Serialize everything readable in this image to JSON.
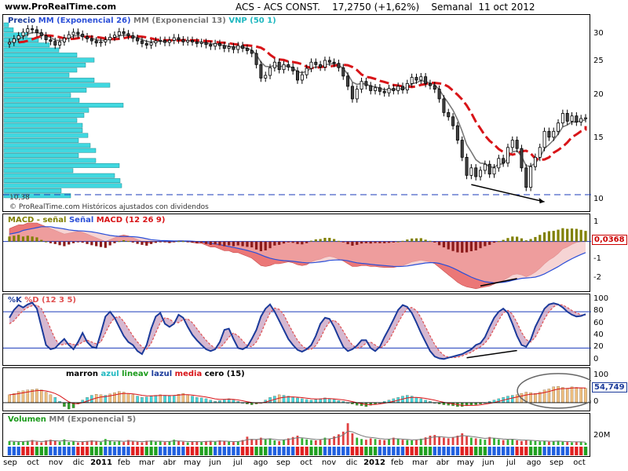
{
  "header": {
    "site": "www.ProRealTime.com",
    "ticker": "ACS - ACS CONST.",
    "price": "17,2750 (+1,62%)",
    "period": "Semanal",
    "date": "11 oct 2012"
  },
  "chart_data": [
    {
      "type": "candlestick",
      "pane": "price",
      "legend": [
        "Precio",
        "MM (Exponencial 26)",
        "MM (Exponencial 13)",
        "VNP (50 1)"
      ],
      "ylim": [
        9.5,
        33.5
      ],
      "y_scale": "log",
      "yticks": [
        30,
        25,
        20,
        15,
        10
      ],
      "low_label": "10,38",
      "watermark": "© ProRealTime.com  Históricos ajustados con dividendos",
      "x_labels": [
        "sep",
        "oct",
        "nov",
        "dic",
        "2011",
        "feb",
        "mar",
        "abr",
        "may",
        "jun",
        "jul",
        "ago",
        "sep",
        "oct",
        "nov",
        "dic",
        "2012",
        "feb",
        "mar",
        "abr",
        "may",
        "jun",
        "jul",
        "ago",
        "sep",
        "oct"
      ],
      "closes": [
        28.5,
        29.2,
        29.8,
        30.5,
        31.2,
        31.0,
        30.4,
        29.8,
        29.0,
        28.7,
        28.0,
        28.6,
        29.3,
        30.0,
        30.5,
        30.1,
        29.6,
        29.2,
        28.8,
        28.4,
        28.6,
        29.0,
        29.5,
        29.9,
        30.6,
        30.2,
        29.8,
        29.3,
        28.8,
        28.3,
        28.0,
        28.4,
        28.8,
        28.9,
        28.5,
        28.9,
        29.4,
        29.0,
        28.6,
        28.9,
        28.6,
        28.3,
        28.5,
        28.1,
        27.8,
        28.3,
        27.9,
        27.4,
        27.7,
        27.2,
        27.9,
        27.4,
        27.0,
        26.5,
        24.6,
        22.5,
        22.9,
        24.1,
        25.0,
        23.8,
        24.6,
        24.2,
        23.6,
        22.2,
        23.0,
        24.0,
        25.0,
        24.6,
        24.2,
        25.3,
        25.0,
        24.8,
        24.1,
        22.8,
        21.3,
        19.6,
        20.9,
        22.0,
        21.4,
        20.7,
        21.1,
        20.6,
        20.4,
        21.0,
        20.7,
        21.3,
        20.8,
        21.7,
        22.6,
        22.2,
        22.7,
        21.7,
        21.4,
        20.9,
        19.6,
        17.9,
        17.4,
        16.4,
        14.9,
        13.3,
        11.8,
        12.4,
        11.7,
        12.2,
        12.7,
        11.9,
        12.4,
        13.2,
        12.8,
        14.2,
        14.9,
        14.1,
        12.4,
        10.9,
        12.5,
        13.3,
        14.2,
        15.8,
        15.2,
        15.8,
        16.7,
        17.8,
        16.9,
        17.5,
        16.8,
        17.2,
        17.275
      ],
      "volume_profile": [
        6,
        12,
        30,
        44,
        58,
        70,
        93,
        115,
        104,
        93,
        83,
        115,
        135,
        105,
        85,
        96,
        152,
        108,
        102,
        93,
        100,
        100,
        107,
        95,
        110,
        117,
        95,
        117,
        147,
        88,
        141,
        148,
        150,
        73,
        85
      ]
    },
    {
      "type": "area",
      "pane": "macd",
      "legend": [
        "MACD - señal",
        "Señal",
        "MACD (12 26 9)"
      ],
      "ylim": [
        -2.6,
        1.3
      ],
      "yticks": [
        1,
        -1,
        -2
      ],
      "last_value": "0,0368",
      "macd": [
        0.7,
        0.8,
        0.9,
        0.9,
        1.0,
        1.0,
        1.0,
        0.9,
        0.8,
        0.7,
        0.6,
        0.5,
        0.4,
        0.45,
        0.5,
        0.55,
        0.5,
        0.4,
        0.3,
        0.2,
        0.1,
        0.0,
        0.1,
        0.2,
        0.3,
        0.35,
        0.3,
        0.2,
        0.1,
        0.0,
        -0.1,
        -0.05,
        0.0,
        0.05,
        0.0,
        -0.05,
        0.0,
        0.05,
        0.05,
        0.0,
        -0.05,
        -0.1,
        -0.1,
        -0.2,
        -0.3,
        -0.3,
        -0.4,
        -0.5,
        -0.5,
        -0.6,
        -0.6,
        -0.7,
        -0.8,
        -0.9,
        -1.1,
        -1.3,
        -1.35,
        -1.3,
        -1.2,
        -1.2,
        -1.15,
        -1.1,
        -1.15,
        -1.25,
        -1.3,
        -1.25,
        -1.1,
        -1.0,
        -0.95,
        -0.85,
        -0.8,
        -0.85,
        -0.95,
        -1.05,
        -1.2,
        -1.35,
        -1.35,
        -1.3,
        -1.3,
        -1.35,
        -1.35,
        -1.38,
        -1.4,
        -1.4,
        -1.4,
        -1.35,
        -1.3,
        -1.2,
        -1.1,
        -1.05,
        -1.0,
        -1.05,
        -1.1,
        -1.2,
        -1.4,
        -1.6,
        -1.8,
        -2.0,
        -2.2,
        -2.35,
        -2.45,
        -2.5,
        -2.55,
        -2.5,
        -2.45,
        -2.4,
        -2.3,
        -2.2,
        -2.1,
        -1.95,
        -1.8,
        -1.75,
        -1.8,
        -1.9,
        -1.8,
        -1.65,
        -1.45,
        -1.2,
        -1.0,
        -0.85,
        -0.65,
        -0.4,
        -0.3,
        -0.15,
        -0.05,
        0.0,
        0.0368
      ],
      "signal": [
        0.4,
        0.45,
        0.5,
        0.6,
        0.65,
        0.7,
        0.75,
        0.8,
        0.8,
        0.8,
        0.75,
        0.72,
        0.68,
        0.63,
        0.6,
        0.58,
        0.57,
        0.55,
        0.52,
        0.48,
        0.43,
        0.38,
        0.33,
        0.3,
        0.28,
        0.27,
        0.27,
        0.26,
        0.24,
        0.2,
        0.15,
        0.1,
        0.08,
        0.06,
        0.05,
        0.04,
        0.03,
        0.03,
        0.03,
        0.03,
        0.02,
        0.0,
        -0.02,
        -0.05,
        -0.1,
        -0.13,
        -0.17,
        -0.22,
        -0.27,
        -0.32,
        -0.37,
        -0.42,
        -0.48,
        -0.55,
        -0.62,
        -0.72,
        -0.82,
        -0.9,
        -0.96,
        -1.0,
        -1.03,
        -1.05,
        -1.07,
        -1.1,
        -1.13,
        -1.15,
        -1.15,
        -1.13,
        -1.1,
        -1.07,
        -1.02,
        -1.0,
        -0.99,
        -1.0,
        -1.04,
        -1.1,
        -1.15,
        -1.18,
        -1.2,
        -1.23,
        -1.26,
        -1.28,
        -1.3,
        -1.32,
        -1.34,
        -1.35,
        -1.34,
        -1.32,
        -1.28,
        -1.24,
        -1.2,
        -1.16,
        -1.14,
        -1.14,
        -1.18,
        -1.25,
        -1.33,
        -1.43,
        -1.55,
        -1.68,
        -1.8,
        -1.92,
        -2.02,
        -2.1,
        -2.17,
        -2.2,
        -2.23,
        -2.22,
        -2.2,
        -2.16,
        -2.1,
        -2.04,
        -1.99,
        -1.97,
        -1.95,
        -1.92,
        -1.85,
        -1.75,
        -1.62,
        -1.49,
        -1.36,
        -1.2,
        -1.06,
        -0.93,
        -0.81,
        -0.7,
        -0.6
      ]
    },
    {
      "type": "line",
      "pane": "stochastic",
      "legend": [
        "%K",
        "%D (12 3 5)"
      ],
      "ylim": [
        -8,
        106
      ],
      "yticks": [
        100,
        80,
        60,
        40,
        20,
        0
      ],
      "k": [
        70,
        83,
        91,
        87,
        92,
        95,
        85,
        55,
        25,
        18,
        20,
        28,
        35,
        25,
        18,
        30,
        45,
        30,
        22,
        20,
        45,
        72,
        80,
        70,
        55,
        40,
        30,
        25,
        15,
        10,
        25,
        52,
        72,
        78,
        60,
        55,
        60,
        75,
        70,
        55,
        42,
        33,
        25,
        18,
        15,
        18,
        30,
        50,
        52,
        35,
        20,
        18,
        22,
        35,
        50,
        72,
        85,
        92,
        80,
        65,
        50,
        35,
        25,
        17,
        14,
        18,
        25,
        40,
        60,
        70,
        68,
        55,
        38,
        22,
        15,
        18,
        24,
        33,
        33,
        20,
        15,
        22,
        38,
        52,
        67,
        83,
        91,
        88,
        78,
        62,
        45,
        30,
        15,
        6,
        3,
        2,
        4,
        6,
        8,
        10,
        14,
        18,
        25,
        28,
        38,
        55,
        70,
        80,
        85,
        78,
        60,
        40,
        25,
        22,
        34,
        55,
        70,
        85,
        92,
        94,
        92,
        87,
        80,
        75,
        72,
        73,
        76
      ],
      "d": [
        60,
        65,
        74,
        82,
        87,
        90,
        91,
        85,
        70,
        52,
        35,
        25,
        26,
        28,
        26,
        25,
        30,
        33,
        30,
        27,
        30,
        45,
        60,
        70,
        72,
        64,
        52,
        40,
        30,
        22,
        18,
        28,
        45,
        62,
        70,
        68,
        62,
        62,
        67,
        68,
        62,
        52,
        42,
        33,
        25,
        20,
        20,
        28,
        38,
        45,
        40,
        32,
        24,
        22,
        30,
        44,
        62,
        78,
        86,
        84,
        75,
        60,
        46,
        33,
        24,
        18,
        18,
        24,
        36,
        52,
        63,
        66,
        60,
        48,
        35,
        25,
        20,
        22,
        28,
        30,
        25,
        20,
        24,
        33,
        47,
        62,
        75,
        85,
        87,
        82,
        70,
        55,
        40,
        26,
        15,
        8,
        5,
        4,
        5,
        7,
        10,
        13,
        18,
        22,
        28,
        38,
        52,
        66,
        78,
        82,
        76,
        62,
        46,
        34,
        30,
        38,
        52,
        68,
        80,
        88,
        92,
        91,
        87,
        82,
        78,
        75,
        74
      ]
    },
    {
      "type": "bar",
      "pane": "oscillator",
      "legend": [
        "marron",
        "azul",
        "lineav",
        "lazul",
        "media",
        "cero (15)"
      ],
      "ylim": [
        -30,
        125
      ],
      "yticks": [
        100,
        0
      ],
      "last_value": "54,749",
      "values": [
        30,
        35,
        42,
        45,
        48,
        50,
        52,
        48,
        40,
        30,
        20,
        5,
        -15,
        -25,
        -20,
        -5,
        10,
        20,
        28,
        32,
        30,
        28,
        33,
        38,
        42,
        40,
        35,
        30,
        25,
        20,
        22,
        25,
        28,
        30,
        28,
        25,
        28,
        32,
        35,
        30,
        25,
        20,
        18,
        15,
        10,
        5,
        8,
        12,
        15,
        10,
        5,
        0,
        -5,
        -8,
        -5,
        0,
        10,
        20,
        25,
        30,
        28,
        25,
        22,
        18,
        15,
        12,
        10,
        12,
        15,
        18,
        15,
        12,
        8,
        5,
        0,
        -5,
        -10,
        -12,
        -15,
        -10,
        -5,
        0,
        5,
        10,
        15,
        20,
        25,
        28,
        25,
        20,
        15,
        10,
        5,
        0,
        -5,
        -8,
        -10,
        -12,
        -15,
        -15,
        -12,
        -10,
        -8,
        -5,
        0,
        5,
        10,
        15,
        20,
        25,
        28,
        30,
        35,
        40,
        38,
        35,
        40,
        48,
        52,
        60,
        62,
        58,
        55,
        60,
        58,
        56,
        54.749
      ]
    },
    {
      "type": "bar",
      "pane": "volume",
      "legend": [
        "Volumen",
        "MM (Exponencial 5)"
      ],
      "yticks": [
        "20M"
      ],
      "volume": [
        1.2,
        1.0,
        0.9,
        1.1,
        1.3,
        1.5,
        1.0,
        0.8,
        1.4,
        1.6,
        1.2,
        1.0,
        1.7,
        0.9,
        1.1,
        0.8,
        1.0,
        1.2,
        1.4,
        1.1,
        0.9,
        1.8,
        1.3,
        1.0,
        1.2,
        0.9,
        1.5,
        1.1,
        1.0,
        0.8,
        1.3,
        1.4,
        1.0,
        1.2,
        0.9,
        1.1,
        1.6,
        1.2,
        1.0,
        0.8,
        1.1,
        1.0,
        0.9,
        1.2,
        1.3,
        1.0,
        1.4,
        1.2,
        1.0,
        0.9,
        1.1,
        1.5,
        2.5,
        1.8,
        1.6,
        2.2,
        1.7,
        2.0,
        1.4,
        1.2,
        1.6,
        2.0,
        2.4,
        2.8,
        2.0,
        1.7,
        1.5,
        1.4,
        1.6,
        2.2,
        1.9,
        2.6,
        3.2,
        4.0,
        6.5,
        3.5,
        2.2,
        1.8,
        1.6,
        2.0,
        1.8,
        1.6,
        1.5,
        1.7,
        2.2,
        1.8,
        1.6,
        1.5,
        1.4,
        1.6,
        1.9,
        2.3,
        2.8,
        3.0,
        2.6,
        2.2,
        2.0,
        2.4,
        2.8,
        3.5,
        2.6,
        2.2,
        2.0,
        1.8,
        1.6,
        2.4,
        2.0,
        1.7,
        1.5,
        1.6,
        1.8,
        1.4,
        1.2,
        1.5,
        1.3,
        1.2,
        1.1,
        1.2,
        1.0,
        1.1,
        1.3,
        1.0,
        0.9,
        0.8,
        0.9,
        1.0,
        0.7
      ]
    }
  ],
  "colors": {
    "up": "#ffffff",
    "down": "#444444",
    "ema26": "#d81418",
    "ema13": "#777777",
    "profile": "#40d8e0",
    "macd_fill": "#e86060",
    "macd_bar": "#8b1a1a",
    "green_bar": "#808000",
    "k_line": "#1a3a9a",
    "d_line": "#e05050",
    "arrow": "#000000"
  }
}
